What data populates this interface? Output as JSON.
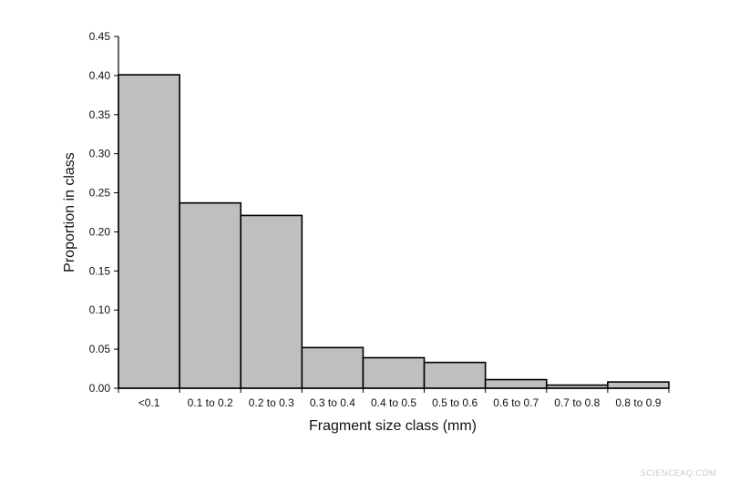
{
  "chart_data": {
    "type": "bar",
    "title": "",
    "xlabel": "Fragment size class (mm)",
    "ylabel": "Proportion in class",
    "categories": [
      "<0.1",
      "0.1 to 0.2",
      "0.2 to 0.3",
      "0.3 to 0.4",
      "0.4 to 0.5",
      "0.5 to 0.6",
      "0.6 to 0.7",
      "0.7 to 0.8",
      "0.8 to 0.9"
    ],
    "values": [
      0.401,
      0.237,
      0.221,
      0.052,
      0.039,
      0.033,
      0.011,
      0.004,
      0.008
    ],
    "ylim": [
      0,
      0.45
    ],
    "yticks": [
      "0.00",
      "0.05",
      "0.10",
      "0.15",
      "0.20",
      "0.25",
      "0.30",
      "0.35",
      "0.40",
      "0.45"
    ],
    "grid": false,
    "legend": "none",
    "bar_color": "#bfbfbf",
    "bar_edge_color": "#000000"
  },
  "watermark": "SCIENCEAQ.COM"
}
